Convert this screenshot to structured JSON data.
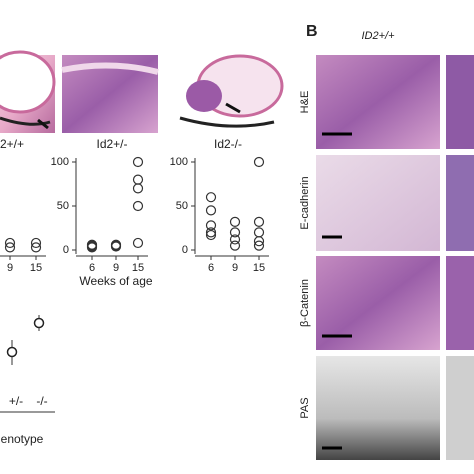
{
  "panel_a": {
    "image_labels": [
      "2+/+",
      "Id2+/-",
      "Id2-/-"
    ],
    "plots": [
      {
        "weeks": [
          9,
          15
        ],
        "groups": [
          [
            8,
            3
          ],
          [
            8,
            3
          ]
        ]
      },
      {
        "yticks": [
          0,
          50,
          100
        ],
        "weeks": [
          6,
          9,
          15
        ],
        "x_label": "Weeks of age",
        "groups": [
          [
            3,
            5,
            6,
            4
          ],
          [
            4,
            5,
            6
          ],
          [
            100,
            80,
            70,
            50,
            8
          ]
        ]
      },
      {
        "yticks": [
          0,
          50,
          100
        ],
        "weeks": [
          6,
          9,
          15
        ],
        "groups": [
          [
            60,
            45,
            28,
            20,
            17
          ],
          [
            32,
            20,
            12,
            5
          ],
          [
            100,
            32,
            20,
            10,
            5
          ]
        ]
      }
    ],
    "genotype_ticks": [
      "+/-",
      "-/-"
    ],
    "genotype_label": "enotype"
  },
  "panel_b": {
    "letter": "B",
    "column_header": "ID2+/+",
    "row_labels": [
      "H&E",
      "E-cadherin",
      "β-Catenin",
      "PAS"
    ]
  }
}
